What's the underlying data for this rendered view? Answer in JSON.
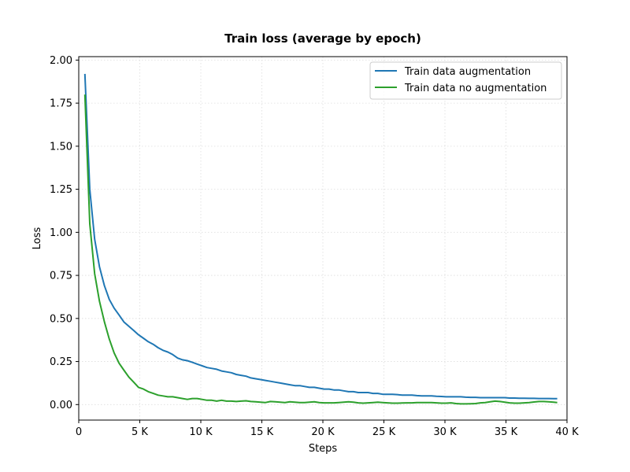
{
  "chart_data": {
    "type": "line",
    "title": "Train loss (average by epoch)",
    "xlabel": "Steps",
    "ylabel": "Loss",
    "xlim": [
      0,
      40000
    ],
    "ylim": [
      -0.09,
      2.02
    ],
    "x_ticks": [
      {
        "value": 0,
        "label": "0"
      },
      {
        "value": 5000,
        "label": "5 K"
      },
      {
        "value": 10000,
        "label": "10 K"
      },
      {
        "value": 15000,
        "label": "15 K"
      },
      {
        "value": 20000,
        "label": "20 K"
      },
      {
        "value": 25000,
        "label": "25 K"
      },
      {
        "value": 30000,
        "label": "30 K"
      },
      {
        "value": 35000,
        "label": "35 K"
      },
      {
        "value": 40000,
        "label": "40 K"
      }
    ],
    "y_ticks": [
      {
        "value": 0.0,
        "label": "0.00"
      },
      {
        "value": 0.25,
        "label": "0.25"
      },
      {
        "value": 0.5,
        "label": "0.50"
      },
      {
        "value": 0.75,
        "label": "0.75"
      },
      {
        "value": 1.0,
        "label": "1.00"
      },
      {
        "value": 1.25,
        "label": "1.25"
      },
      {
        "value": 1.5,
        "label": "1.50"
      },
      {
        "value": 1.75,
        "label": "1.75"
      },
      {
        "value": 2.0,
        "label": "2.00"
      }
    ],
    "grid": true,
    "legend_position": "top-right",
    "series": [
      {
        "name": "Train data augmentation",
        "color": "#1f77b4",
        "x": [
          500,
          900,
          1300,
          1700,
          2100,
          2500,
          2900,
          3300,
          3700,
          4100,
          4500,
          4900,
          5300,
          5700,
          6100,
          6500,
          6900,
          7300,
          7700,
          8100,
          8500,
          8900,
          9300,
          9700,
          10100,
          10500,
          10900,
          11300,
          11700,
          12100,
          12500,
          12900,
          13300,
          13700,
          14100,
          14500,
          14900,
          15300,
          15700,
          16100,
          16500,
          16900,
          17300,
          17700,
          18100,
          18500,
          18900,
          19300,
          19700,
          20100,
          20500,
          20900,
          21300,
          21700,
          22100,
          22500,
          22900,
          23300,
          23700,
          24100,
          24500,
          24900,
          25300,
          25700,
          26100,
          26500,
          26900,
          27300,
          27700,
          28100,
          28500,
          28900,
          29300,
          29700,
          30100,
          30500,
          30900,
          31300,
          31700,
          32100,
          32500,
          32900,
          33300,
          33700,
          34100,
          34500,
          34900,
          35300,
          35700,
          36100,
          36500,
          36900,
          37300,
          37700,
          38100,
          38500,
          38900,
          39200
        ],
        "y": [
          1.92,
          1.25,
          0.96,
          0.8,
          0.69,
          0.61,
          0.56,
          0.52,
          0.48,
          0.455,
          0.43,
          0.405,
          0.385,
          0.365,
          0.35,
          0.33,
          0.315,
          0.305,
          0.29,
          0.27,
          0.26,
          0.255,
          0.245,
          0.235,
          0.225,
          0.215,
          0.21,
          0.205,
          0.195,
          0.19,
          0.185,
          0.175,
          0.17,
          0.165,
          0.155,
          0.15,
          0.145,
          0.14,
          0.135,
          0.13,
          0.125,
          0.12,
          0.115,
          0.11,
          0.11,
          0.105,
          0.1,
          0.1,
          0.095,
          0.09,
          0.09,
          0.085,
          0.085,
          0.08,
          0.075,
          0.075,
          0.07,
          0.07,
          0.07,
          0.065,
          0.065,
          0.06,
          0.06,
          0.06,
          0.058,
          0.055,
          0.055,
          0.055,
          0.052,
          0.05,
          0.05,
          0.05,
          0.048,
          0.047,
          0.045,
          0.045,
          0.045,
          0.045,
          0.043,
          0.042,
          0.042,
          0.04,
          0.04,
          0.04,
          0.04,
          0.04,
          0.04,
          0.038,
          0.038,
          0.037,
          0.037,
          0.036,
          0.036,
          0.035,
          0.035,
          0.035,
          0.034,
          0.034
        ]
      },
      {
        "name": "Train data no augmentation",
        "color": "#2ca02c",
        "x": [
          500,
          900,
          1300,
          1700,
          2100,
          2500,
          2900,
          3300,
          3700,
          4100,
          4500,
          4900,
          5300,
          5700,
          6100,
          6500,
          6900,
          7300,
          7700,
          8100,
          8500,
          8900,
          9300,
          9700,
          10100,
          10500,
          10900,
          11300,
          11700,
          12100,
          12500,
          12900,
          13300,
          13700,
          14100,
          14500,
          14900,
          15300,
          15700,
          16100,
          16500,
          16900,
          17300,
          17700,
          18100,
          18500,
          18900,
          19300,
          19700,
          20100,
          20500,
          20900,
          21300,
          21700,
          22100,
          22500,
          22900,
          23300,
          23700,
          24100,
          24500,
          24900,
          25300,
          25700,
          26100,
          26500,
          26900,
          27300,
          27700,
          28100,
          28500,
          28900,
          29300,
          29700,
          30100,
          30500,
          30900,
          31300,
          31700,
          32100,
          32500,
          32900,
          33300,
          33700,
          34100,
          34500,
          34900,
          35300,
          35700,
          36100,
          36500,
          36900,
          37300,
          37700,
          38100,
          38500,
          38900,
          39200
        ],
        "y": [
          1.8,
          1.05,
          0.76,
          0.6,
          0.48,
          0.38,
          0.3,
          0.24,
          0.2,
          0.16,
          0.13,
          0.1,
          0.09,
          0.075,
          0.065,
          0.055,
          0.05,
          0.045,
          0.045,
          0.04,
          0.035,
          0.03,
          0.035,
          0.035,
          0.03,
          0.025,
          0.025,
          0.02,
          0.025,
          0.02,
          0.02,
          0.018,
          0.02,
          0.022,
          0.018,
          0.016,
          0.014,
          0.012,
          0.018,
          0.016,
          0.014,
          0.012,
          0.016,
          0.014,
          0.012,
          0.012,
          0.014,
          0.016,
          0.012,
          0.01,
          0.01,
          0.01,
          0.012,
          0.014,
          0.016,
          0.014,
          0.01,
          0.008,
          0.01,
          0.012,
          0.014,
          0.012,
          0.01,
          0.008,
          0.008,
          0.009,
          0.01,
          0.01,
          0.012,
          0.012,
          0.012,
          0.012,
          0.01,
          0.008,
          0.008,
          0.01,
          0.006,
          0.004,
          0.004,
          0.005,
          0.006,
          0.01,
          0.012,
          0.016,
          0.02,
          0.018,
          0.014,
          0.01,
          0.008,
          0.008,
          0.01,
          0.012,
          0.015,
          0.018,
          0.018,
          0.016,
          0.014,
          0.012
        ]
      }
    ]
  }
}
